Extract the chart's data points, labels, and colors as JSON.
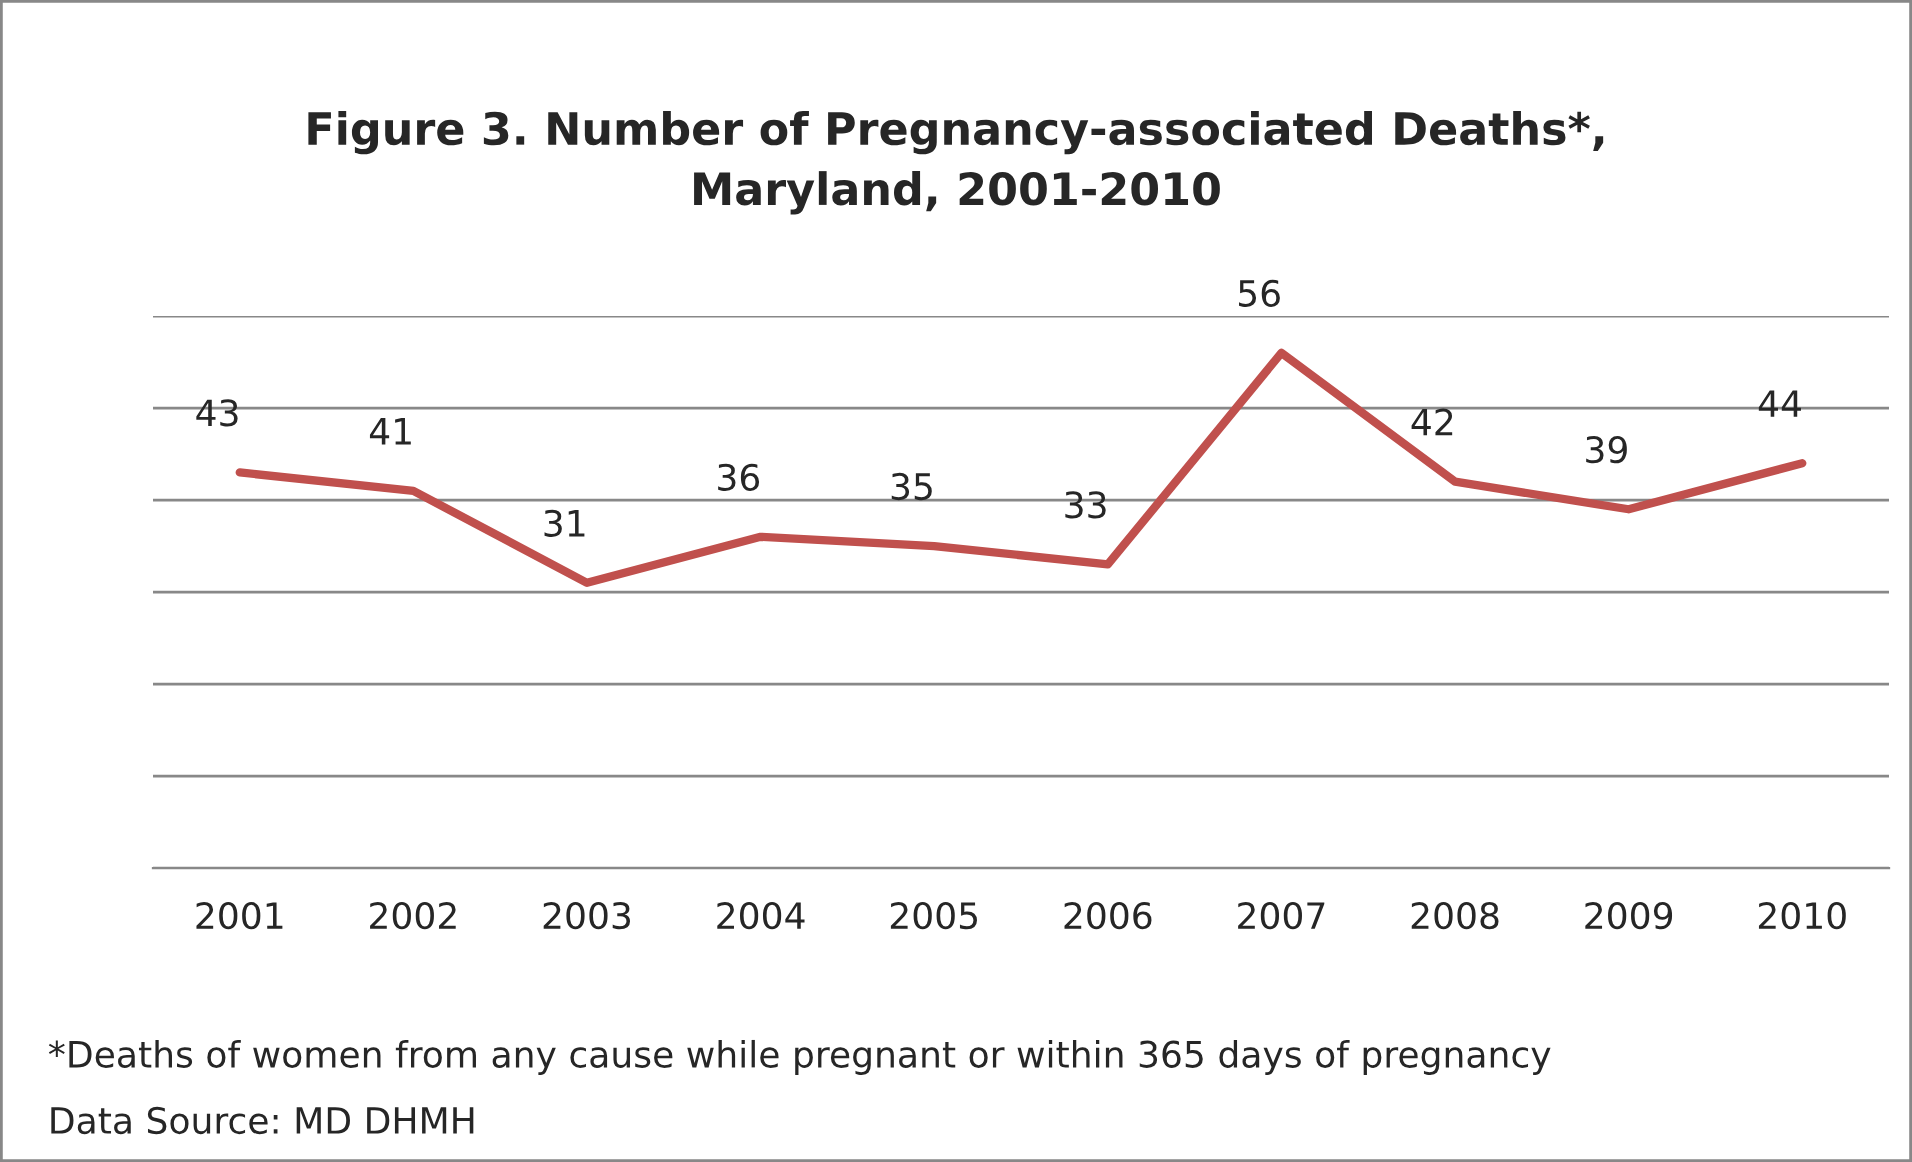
{
  "chart_data": {
    "type": "line",
    "title": "Figure 3. Number of Pregnancy-associated Deaths*,\nMaryland, 2001-2010",
    "categories": [
      "2001",
      "2002",
      "2003",
      "2004",
      "2005",
      "2006",
      "2007",
      "2008",
      "2009",
      "2010"
    ],
    "series": [
      {
        "color": "#c0504d",
        "values": [
          43,
          41,
          31,
          36,
          35,
          33,
          56,
          42,
          39,
          44
        ]
      }
    ],
    "data_labels": true,
    "ylim": [
      0,
      60
    ],
    "yticks": [
      {
        "value": 0,
        "label": null
      },
      {
        "value": 10,
        "label": null
      },
      {
        "value": 20,
        "label": null
      },
      {
        "value": 30,
        "label": null
      },
      {
        "value": 40,
        "label": null
      },
      {
        "value": 50,
        "label": null
      },
      {
        "value": 60,
        "label": null
      }
    ],
    "tick_labels": "x",
    "grid": "y",
    "legend": false,
    "marker": "none",
    "line_style": "solid",
    "annotations": [
      "*Deaths of women from any cause while pregnant or within 365 days of pregnancy",
      "Data Source: MD DHMH"
    ]
  }
}
